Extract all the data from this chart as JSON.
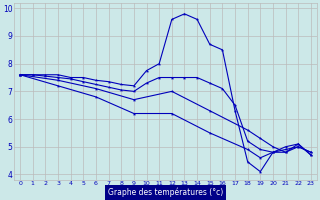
{
  "xlabel": "Graphe des températures (°c)",
  "xlim": [
    -0.5,
    23.5
  ],
  "ylim": [
    3.8,
    10.2
  ],
  "yticks": [
    4,
    5,
    6,
    7,
    8,
    9,
    10
  ],
  "xticks": [
    0,
    1,
    2,
    3,
    4,
    5,
    6,
    7,
    8,
    9,
    10,
    11,
    12,
    13,
    14,
    15,
    16,
    17,
    18,
    19,
    20,
    21,
    22,
    23
  ],
  "bg_color": "#cce8e8",
  "line_color": "#0000bb",
  "grid_color": "#bbbbbb",
  "lines": [
    {
      "x": [
        0,
        1,
        2,
        3,
        4,
        5,
        6,
        7,
        8,
        9,
        10,
        11,
        12,
        13,
        14,
        15,
        16,
        17,
        18,
        19,
        20,
        21,
        22,
        23
      ],
      "y": [
        7.6,
        7.6,
        7.6,
        7.6,
        7.5,
        7.5,
        7.4,
        7.35,
        7.25,
        7.2,
        7.75,
        8.0,
        9.6,
        9.8,
        9.6,
        8.7,
        8.5,
        6.3,
        4.45,
        4.1,
        4.8,
        5.0,
        5.1,
        4.7
      ]
    },
    {
      "x": [
        0,
        1,
        2,
        3,
        4,
        5,
        6,
        7,
        8,
        9,
        10,
        11,
        12,
        13,
        14,
        15,
        16,
        17,
        18,
        19,
        20,
        21,
        22,
        23
      ],
      "y": [
        7.6,
        7.6,
        7.55,
        7.5,
        7.45,
        7.35,
        7.25,
        7.15,
        7.05,
        7.0,
        7.3,
        7.5,
        7.5,
        7.5,
        7.5,
        7.3,
        7.1,
        6.5,
        5.2,
        4.9,
        4.8,
        4.9,
        5.0,
        4.8
      ]
    },
    {
      "x": [
        0,
        3,
        6,
        9,
        12,
        15,
        18,
        19,
        20,
        21,
        22,
        23
      ],
      "y": [
        7.6,
        7.4,
        7.1,
        6.7,
        7.0,
        6.3,
        5.6,
        5.3,
        5.0,
        4.8,
        5.0,
        4.8
      ]
    },
    {
      "x": [
        0,
        3,
        6,
        9,
        12,
        15,
        18,
        19,
        20,
        21,
        22,
        23
      ],
      "y": [
        7.6,
        7.2,
        6.8,
        6.2,
        6.2,
        5.5,
        4.9,
        4.6,
        4.8,
        4.8,
        5.1,
        4.7
      ]
    }
  ]
}
